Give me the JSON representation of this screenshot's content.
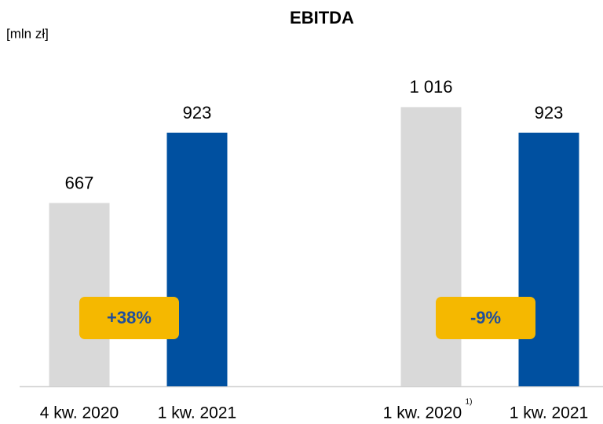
{
  "chart_data": {
    "type": "bar",
    "title": "EBITDA",
    "unit_label": "[mln zł]",
    "categories": [
      "4 kw. 2020",
      "1 kw. 2021",
      "1 kw. 2020",
      "1 kw. 2021"
    ],
    "category_notes": [
      null,
      null,
      "1)",
      null
    ],
    "values": [
      667,
      923,
      1016,
      923
    ],
    "value_labels": [
      "667",
      "923",
      "1 016",
      "923"
    ],
    "colors": [
      "#d9d9d9",
      "#0050a0",
      "#d9d9d9",
      "#0050a0"
    ],
    "ylim": [
      0,
      1200
    ],
    "annotations": [
      "+38%",
      "-9%"
    ],
    "annotation_color": "#f5b800"
  }
}
